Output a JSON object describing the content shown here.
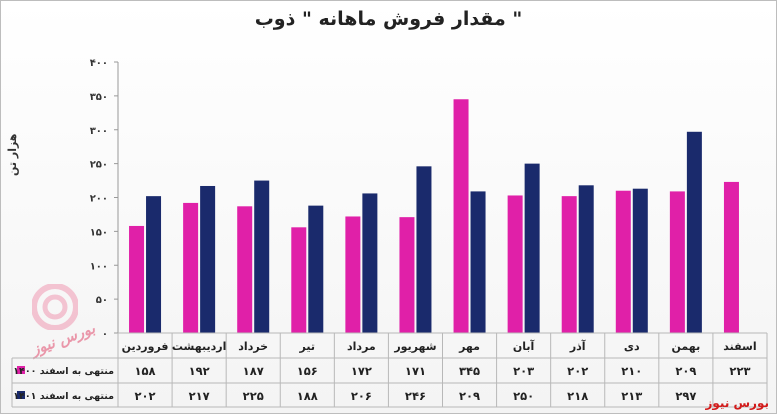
{
  "chart_data": {
    "type": "bar",
    "title": "مقدار فروش ماهانه \" ذوب \"",
    "ylabel": "هزار تن",
    "ylim": [
      0,
      400
    ],
    "yticks": [
      "۰",
      "۵۰",
      "۱۰۰",
      "۱۵۰",
      "۲۰۰",
      "۲۵۰",
      "۳۰۰",
      "۳۵۰",
      "۴۰۰"
    ],
    "categories": [
      "فروردین",
      "اردیبهشت",
      "خرداد",
      "تیر",
      "مرداد",
      "شهریور",
      "مهر",
      "آبان",
      "آذر",
      "دی",
      "بهمن",
      "اسفند"
    ],
    "series": [
      {
        "name": "منتهی به اسفند ۱۴۰۰",
        "color": "#e020a8",
        "values": [
          158,
          192,
          187,
          156,
          172,
          171,
          345,
          203,
          202,
          210,
          209,
          223
        ],
        "labels": [
          "۱۵۸",
          "۱۹۲",
          "۱۸۷",
          "۱۵۶",
          "۱۷۲",
          "۱۷۱",
          "۳۴۵",
          "۲۰۳",
          "۲۰۲",
          "۲۱۰",
          "۲۰۹",
          "۲۲۳"
        ]
      },
      {
        "name": "منتهی به اسفند ۱۴۰۱",
        "color": "#1a2a6c",
        "values": [
          202,
          217,
          225,
          188,
          206,
          246,
          209,
          250,
          218,
          213,
          297,
          null
        ],
        "labels": [
          "۲۰۲",
          "۲۱۷",
          "۲۲۵",
          "۱۸۸",
          "۲۰۶",
          "۲۴۶",
          "۲۰۹",
          "۲۵۰",
          "۲۱۸",
          "۲۱۳",
          "۲۹۷",
          ""
        ]
      }
    ],
    "grid": false,
    "legend": "table-left"
  },
  "source_label": "بورس نیوز",
  "watermark_text": "بورس نیوز"
}
